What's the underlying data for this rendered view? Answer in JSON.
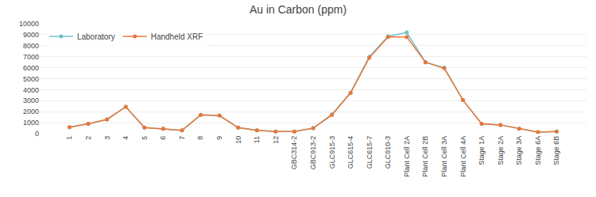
{
  "chart_data": {
    "type": "line",
    "title": "Au in Carbon (ppm)",
    "categories": [
      "1",
      "2",
      "3",
      "4",
      "5",
      "6",
      "7",
      "8",
      "9",
      "10",
      "11",
      "12",
      "GBC314-2",
      "GBC913-2",
      "GLC915-3",
      "GLC615-4",
      "GLC615-7",
      "GLC910-3",
      "Plant Cell 2A",
      "Plant Cell 2B",
      "Plant Cell 3A",
      "Plant Cell 4A",
      "Stage 1A",
      "Stage 2A",
      "Stage 3A",
      "Stage 6A",
      "Stage 6B"
    ],
    "series": [
      {
        "name": "Laboratory",
        "color": "#70c2cc",
        "values": [
          600,
          900,
          1300,
          2450,
          550,
          450,
          300,
          1700,
          1650,
          550,
          300,
          200,
          200,
          500,
          1750,
          3750,
          7000,
          8850,
          9200,
          6500,
          6000,
          3050,
          900,
          800,
          450,
          150,
          200
        ]
      },
      {
        "name": "Handheld XRF",
        "color": "#e8773a",
        "values": [
          600,
          900,
          1300,
          2450,
          550,
          450,
          300,
          1700,
          1650,
          550,
          300,
          200,
          200,
          500,
          1700,
          3700,
          6900,
          8800,
          8800,
          6500,
          5950,
          3050,
          900,
          800,
          450,
          150,
          200
        ]
      }
    ],
    "ylim": [
      0,
      10000
    ],
    "yticks": [
      0,
      1000,
      2000,
      3000,
      4000,
      5000,
      6000,
      7000,
      8000,
      9000,
      10000
    ],
    "grid": true,
    "legend": "upper left",
    "marker": "circle",
    "line_style": "solid"
  }
}
